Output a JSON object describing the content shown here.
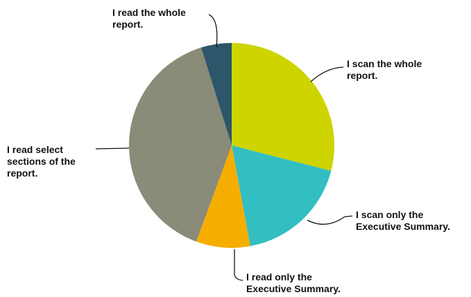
{
  "chart_data": {
    "type": "pie",
    "title": "",
    "start_angle_deg": 0,
    "direction": "clockwise",
    "legend": "none",
    "slices": [
      {
        "label_lines": [
          "I scan the whole",
          "report."
        ],
        "value": 29.0,
        "color": "#cdd400"
      },
      {
        "label_lines": [
          "I scan only the",
          "Executive Summary."
        ],
        "value": 18.1,
        "color": "#33bec2"
      },
      {
        "label_lines": [
          "I read only the",
          "Executive Summary."
        ],
        "value": 8.5,
        "color": "#f5ad00"
      },
      {
        "label_lines": [
          "I read select",
          "sections of the",
          "report."
        ],
        "value": 39.6,
        "color": "#8a8b79"
      },
      {
        "label_lines": [
          "I read the whole",
          "report."
        ],
        "value": 4.8,
        "color": "#2d566b"
      }
    ]
  }
}
